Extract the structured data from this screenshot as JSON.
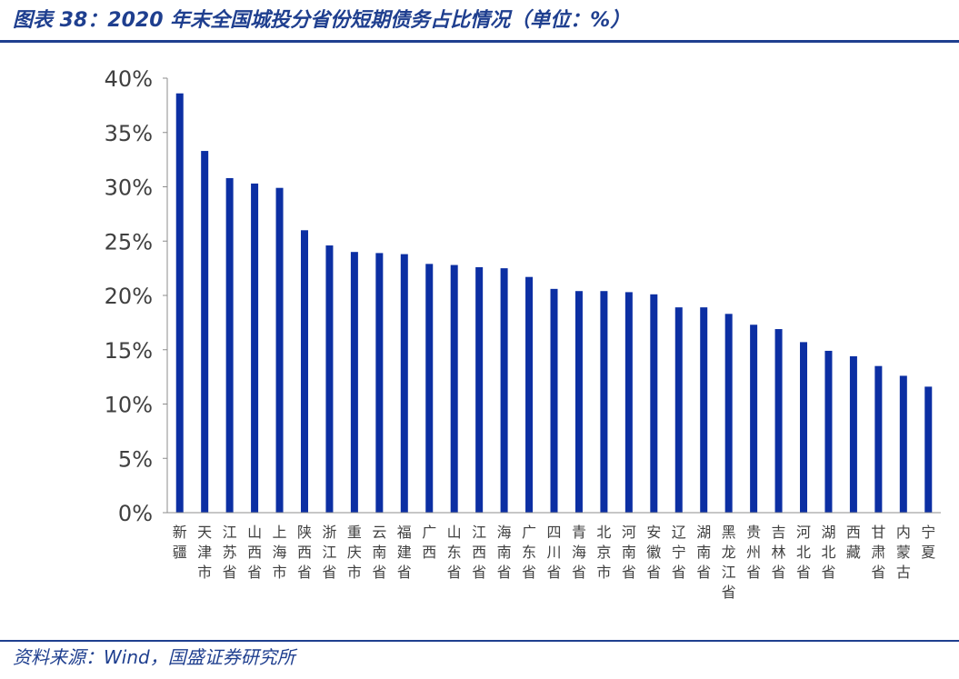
{
  "header": {
    "title": "图表 38：2020 年末全国城投分省份短期债务占比情况（单位：%）"
  },
  "footer": {
    "source": "资料来源：Wind，国盛证券研究所"
  },
  "colors": {
    "bar": "#0c2fa3",
    "accent": "#1f3f8f",
    "axis": "#8c8c8c"
  },
  "chart_data": {
    "type": "bar",
    "title": "",
    "xlabel": "",
    "ylabel": "",
    "ylim": [
      0,
      40
    ],
    "yticks": [
      "0%",
      "5%",
      "10%",
      "15%",
      "20%",
      "25%",
      "30%",
      "35%",
      "40%"
    ],
    "grid": false,
    "categories": [
      "新疆",
      "天津市",
      "江苏省",
      "山西省",
      "上海市",
      "陕西省",
      "浙江省",
      "重庆市",
      "云南省",
      "福建省",
      "广西",
      "山东省",
      "江西省",
      "海南省",
      "广东省",
      "四川省",
      "青海省",
      "北京市",
      "河南省",
      "安徽省",
      "辽宁省",
      "湖南省",
      "黑龙江省",
      "贵州省",
      "吉林省",
      "河北省",
      "湖北省",
      "西藏",
      "甘肃省",
      "内蒙古",
      "宁夏"
    ],
    "values": [
      38.6,
      33.3,
      30.8,
      30.3,
      29.9,
      26.0,
      24.6,
      24.0,
      23.9,
      23.8,
      22.9,
      22.8,
      22.6,
      22.5,
      21.7,
      20.6,
      20.4,
      20.4,
      20.3,
      20.1,
      18.9,
      18.9,
      18.3,
      17.3,
      16.9,
      15.7,
      14.9,
      14.4,
      13.5,
      12.6,
      11.6
    ]
  }
}
